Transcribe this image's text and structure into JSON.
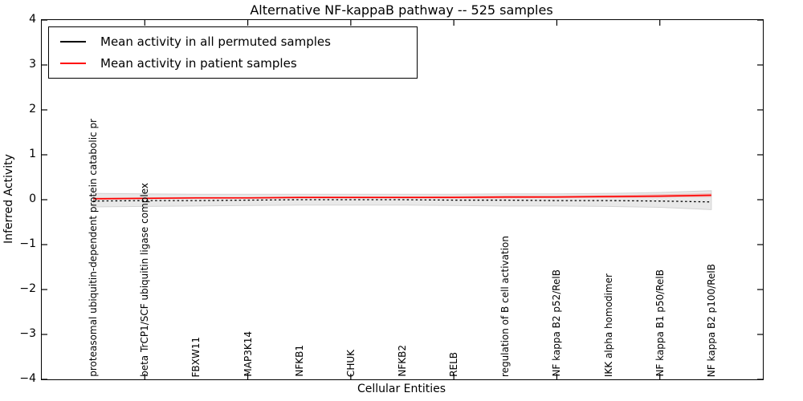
{
  "title": "Alternative NF-kappaB pathway -- 525 samples",
  "legend": {
    "items": [
      {
        "label": "Mean activity in all permuted samples",
        "color": "#000000"
      },
      {
        "label": "Mean activity in patient samples",
        "color": "#ff0000"
      }
    ]
  },
  "axes": {
    "xlabel": "Cellular Entities",
    "ylabel": "Inferred Activity",
    "ytick_labels": [
      "4",
      "3",
      "2",
      "1",
      "0",
      "−1",
      "−2",
      "−3",
      "−4"
    ],
    "ytick_values": [
      4,
      3,
      2,
      1,
      0,
      -1,
      -2,
      -3,
      -4
    ]
  },
  "chart_data": {
    "type": "line",
    "title": "Alternative NF-kappaB pathway -- 525 samples",
    "xlabel": "Cellular Entities",
    "ylabel": "Inferred Activity",
    "ylim": [
      -4,
      4
    ],
    "xlim_units": [
      0,
      14
    ],
    "xtick_units": [
      2,
      4,
      6,
      8,
      10,
      12
    ],
    "grid": false,
    "legend_position": "upper left",
    "categories": [
      "proteasomal ubiquitin-dependent protein catabolic pr",
      "beta TrCP1/SCF ubiquitin ligase complex",
      "FBXW11",
      "MAP3K14",
      "NFKB1",
      "CHUK",
      "NFKB2",
      "RELB",
      "regulation of B cell activation",
      "NF kappa B2 p52/RelB",
      "IKK alpha homodimer",
      "NF kappa B1 p50/RelB",
      "NF kappa B2 p100/RelB"
    ],
    "category_positions_units": [
      1,
      2,
      3,
      4,
      5,
      6,
      7,
      8,
      9,
      10,
      11,
      12,
      13
    ],
    "series": [
      {
        "name": "Mean activity in all permuted samples",
        "color": "#000000",
        "line_style": "dashed",
        "values": [
          -0.03,
          -0.02,
          -0.02,
          -0.01,
          0.0,
          0.0,
          0.0,
          -0.01,
          -0.01,
          -0.02,
          -0.02,
          -0.03,
          -0.05
        ]
      },
      {
        "name": "Mean activity in patient samples",
        "color": "#ff0000",
        "line_style": "solid",
        "values": [
          0.02,
          0.03,
          0.04,
          0.04,
          0.05,
          0.05,
          0.05,
          0.05,
          0.06,
          0.06,
          0.07,
          0.08,
          0.1
        ]
      }
    ],
    "bands": [
      {
        "name": "permuted samples range",
        "fill": "#e9e9e9",
        "edge": "#d2d2d2",
        "upper": [
          0.14,
          0.13,
          0.12,
          0.12,
          0.12,
          0.12,
          0.12,
          0.12,
          0.13,
          0.13,
          0.14,
          0.16,
          0.2
        ],
        "lower": [
          -0.16,
          -0.15,
          -0.14,
          -0.13,
          -0.12,
          -0.12,
          -0.12,
          -0.13,
          -0.14,
          -0.14,
          -0.15,
          -0.17,
          -0.22
        ]
      },
      {
        "name": "patient samples range",
        "fill": "rgba(255,40,30,0.25)",
        "edge": "none",
        "upper": [
          0.05,
          0.05,
          0.06,
          0.06,
          0.07,
          0.07,
          0.07,
          0.08,
          0.09,
          0.09,
          0.1,
          0.12,
          0.14
        ],
        "lower": [
          0.0,
          0.01,
          0.02,
          0.02,
          0.03,
          0.03,
          0.03,
          0.03,
          0.03,
          0.04,
          0.04,
          0.05,
          0.06
        ]
      }
    ]
  }
}
